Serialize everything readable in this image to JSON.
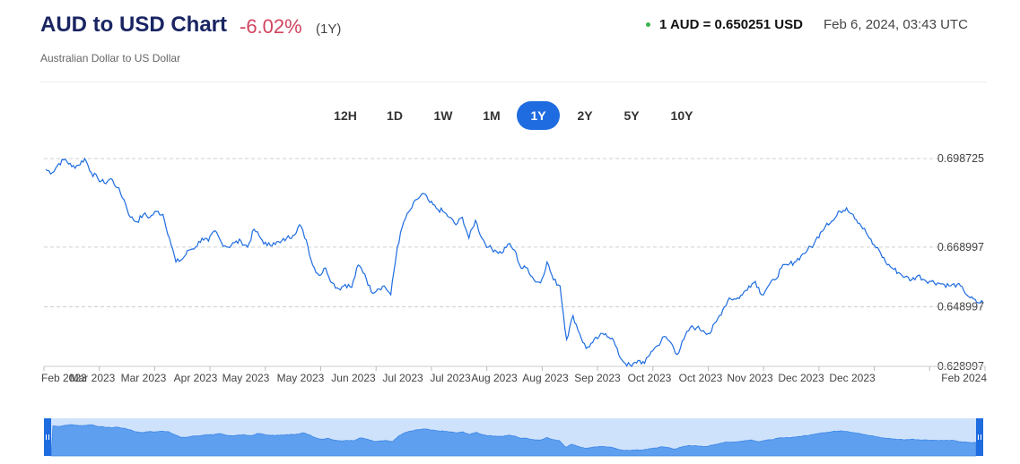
{
  "header": {
    "title": "AUD to USD Chart",
    "change": "-6.02%",
    "period": "(1Y)",
    "subtitle": "Australian Dollar to US Dollar",
    "rate": "1 AUD = 0.650251 USD",
    "timestamp": "Feb 6, 2024, 03:43 UTC",
    "status_color": "#3cb44b"
  },
  "tabs": [
    {
      "label": "12H",
      "active": false
    },
    {
      "label": "1D",
      "active": false
    },
    {
      "label": "1W",
      "active": false
    },
    {
      "label": "1M",
      "active": false
    },
    {
      "label": "1Y",
      "active": true
    },
    {
      "label": "2Y",
      "active": false
    },
    {
      "label": "5Y",
      "active": false
    },
    {
      "label": "10Y",
      "active": false
    }
  ],
  "chart_data": {
    "type": "line",
    "title": "AUD to USD Chart",
    "ylim": [
      0.628997,
      0.698725
    ],
    "y_ticks": [
      "0.698725",
      "0.668997",
      "0.648997",
      "0.628997"
    ],
    "y_tick_values": [
      0.698725,
      0.668997,
      0.648997,
      0.628997
    ],
    "x_ticks": [
      "Feb 2023",
      "Mar 2023",
      "Mar 2023",
      "Apr 2023",
      "May 2023",
      "May 2023",
      "Jun 2023",
      "Jul 2023",
      "Jul 2023",
      "Aug 2023",
      "Aug 2023",
      "Sep 2023",
      "Oct 2023",
      "Oct 2023",
      "Nov 2023",
      "Dec 2023",
      "Dec 2023",
      "Feb 2024"
    ],
    "x_range": [
      "2023-02-06",
      "2024-02-06"
    ],
    "grid": true,
    "line_color": "#1e6ce0",
    "series": [
      {
        "values": [
          0.695,
          0.694,
          0.697,
          0.6985,
          0.696,
          0.6965,
          0.6987,
          0.694,
          0.692,
          0.6905,
          0.692,
          0.689,
          0.685,
          0.679,
          0.6775,
          0.68,
          0.679,
          0.681,
          0.68,
          0.672,
          0.664,
          0.665,
          0.668,
          0.669,
          0.672,
          0.671,
          0.6745,
          0.6705,
          0.669,
          0.6705,
          0.671,
          0.669,
          0.675,
          0.672,
          0.6695,
          0.6705,
          0.6705,
          0.672,
          0.673,
          0.6765,
          0.6715,
          0.663,
          0.6595,
          0.662,
          0.657,
          0.655,
          0.6565,
          0.6555,
          0.663,
          0.66,
          0.654,
          0.655,
          0.656,
          0.653,
          0.669,
          0.6775,
          0.6815,
          0.685,
          0.687,
          0.684,
          0.682,
          0.681,
          0.679,
          0.6765,
          0.679,
          0.672,
          0.678,
          0.672,
          0.669,
          0.668,
          0.667,
          0.67,
          0.668,
          0.662,
          0.662,
          0.658,
          0.657,
          0.664,
          0.658,
          0.656,
          0.638,
          0.646,
          0.64,
          0.635,
          0.637,
          0.639,
          0.64,
          0.6385,
          0.633,
          0.63,
          0.629,
          0.631,
          0.63,
          0.634,
          0.636,
          0.639,
          0.637,
          0.633,
          0.638,
          0.642,
          0.642,
          0.641,
          0.64,
          0.644,
          0.648,
          0.652,
          0.6515,
          0.653,
          0.656,
          0.6575,
          0.653,
          0.656,
          0.658,
          0.662,
          0.663,
          0.664,
          0.666,
          0.668,
          0.67,
          0.674,
          0.677,
          0.678,
          0.681,
          0.6822,
          0.68,
          0.677,
          0.674,
          0.67,
          0.668,
          0.664,
          0.662,
          0.6605,
          0.659,
          0.658,
          0.6595,
          0.658,
          0.6575,
          0.657,
          0.6565,
          0.656,
          0.6565,
          0.6545,
          0.652,
          0.6505,
          0.6505
        ]
      }
    ]
  },
  "navigator": {
    "fill_color": "#5ea0ef",
    "window_color": "#cfe2fb",
    "handle_color": "#1e6ce0"
  }
}
